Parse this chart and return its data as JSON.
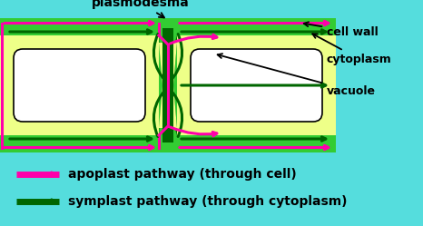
{
  "bg_color": "#55dddd",
  "cell_wall_color": "#33cc33",
  "cytoplasm_color": "#eeff88",
  "vacuole_color": "#ffffff",
  "apoplast_color": "#ff00aa",
  "symplast_color": "#006600",
  "border_color": "#000000",
  "title_text": "plasmodesma",
  "label_cell_wall": "cell wall",
  "label_cytoplasm": "cytoplasm",
  "label_vacuole": "vacuole",
  "legend_apoplast": "apoplast pathway (through cell)",
  "legend_symplast": "symplast pathway (through cytoplasm)",
  "fig_width": 4.66,
  "fig_height": 2.49,
  "dpi": 100
}
